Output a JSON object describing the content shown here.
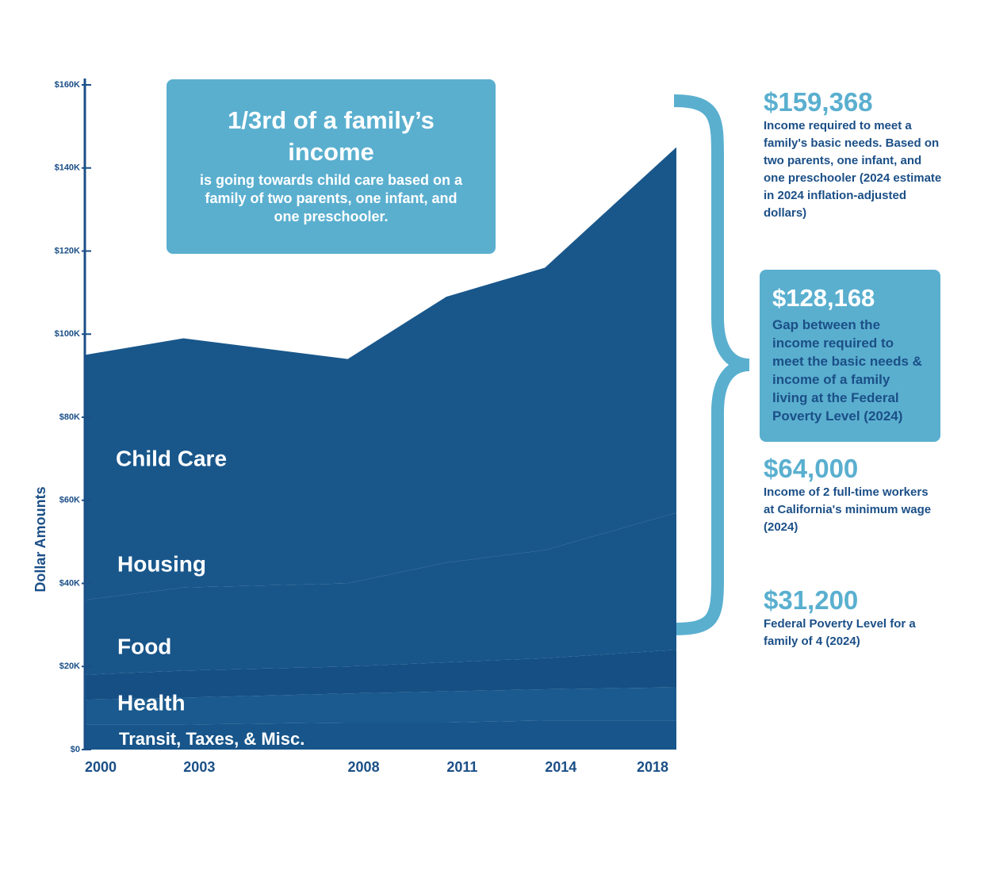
{
  "chart_data": {
    "type": "stacked_area",
    "y_label": "Dollar Amounts",
    "x": [
      2000,
      2003,
      2008,
      2011,
      2014,
      2018
    ],
    "xlim": [
      2000,
      2018
    ],
    "xticks": [
      2000,
      2003,
      2008,
      2011,
      2014,
      2018
    ],
    "ylim": [
      0,
      160000
    ],
    "yticks": [
      {
        "value": 0,
        "label": "$0"
      },
      {
        "value": 20000,
        "label": "$20K"
      },
      {
        "value": 40000,
        "label": "$40K"
      },
      {
        "value": 60000,
        "label": "$60K"
      },
      {
        "value": 80000,
        "label": "$80K"
      },
      {
        "value": 100000,
        "label": "$100K"
      },
      {
        "value": 120000,
        "label": "$120K"
      },
      {
        "value": 140000,
        "label": "$140K"
      },
      {
        "value": 160000,
        "label": "$160K"
      }
    ],
    "series": [
      {
        "name": "Transit, Taxes, & Misc.",
        "color": "#17558a",
        "values": [
          6000,
          6000,
          6500,
          6500,
          7000,
          7000
        ]
      },
      {
        "name": "Health",
        "color": "#1a5a8e",
        "values": [
          6000,
          6500,
          7000,
          7500,
          7500,
          8000
        ]
      },
      {
        "name": "Food",
        "color": "#154f84",
        "values": [
          6000,
          6500,
          6500,
          7000,
          7500,
          9000
        ]
      },
      {
        "name": "Housing",
        "color": "#185589",
        "values": [
          18000,
          20000,
          20000,
          24000,
          26000,
          33000
        ]
      },
      {
        "name": "Child Care",
        "color": "#19578b",
        "values": [
          59000,
          60000,
          54000,
          64000,
          68000,
          88000
        ]
      }
    ],
    "callout": {
      "headline": "1/3rd of a family’s income",
      "text": "is going towards child care based on a family of two parents, one infant, and one preschooler."
    },
    "annotations": [
      {
        "amount": "$159,368",
        "text": "Income required to meet a family's basic needs. Based on two parents, one infant, and one preschooler (2024 estimate in 2024 inflation-adjusted dollars)"
      },
      {
        "amount": "$128,168",
        "text": "Gap between the income required to meet the basic needs & income of a family living at the Federal Poverty Level (2024)"
      },
      {
        "amount": "$64,000",
        "text": "Income of 2 full-time workers at California's minimum wage (2024)"
      },
      {
        "amount": "$31,200",
        "text": "Federal Poverty Level for a family of 4 (2024)"
      }
    ]
  }
}
